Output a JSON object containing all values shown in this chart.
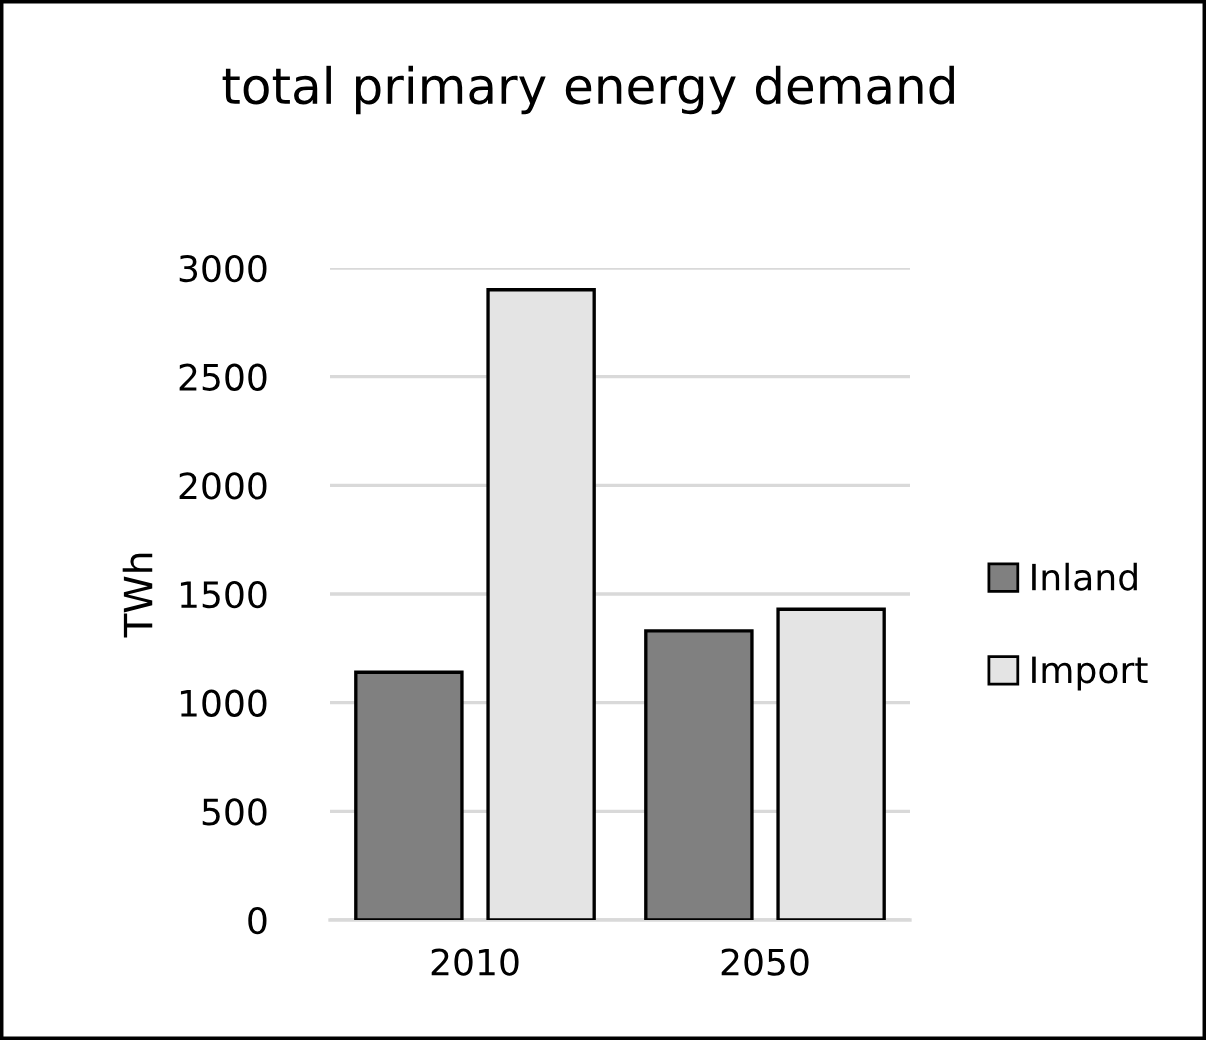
{
  "chart_data": {
    "type": "bar",
    "title": "total primary energy demand",
    "ylabel": "TWh",
    "categories": [
      "2010",
      "2050"
    ],
    "series": [
      {
        "name": "Inland",
        "color": "#808080",
        "values": [
          1140,
          1330
        ]
      },
      {
        "name": "Import",
        "color": "#e4e4e4",
        "values": [
          2900,
          1430
        ]
      }
    ],
    "ylim": [
      0,
      3000
    ],
    "yticks": [
      0,
      500,
      1000,
      1500,
      2000,
      2500,
      3000
    ],
    "grid": "y",
    "legend": "right"
  }
}
